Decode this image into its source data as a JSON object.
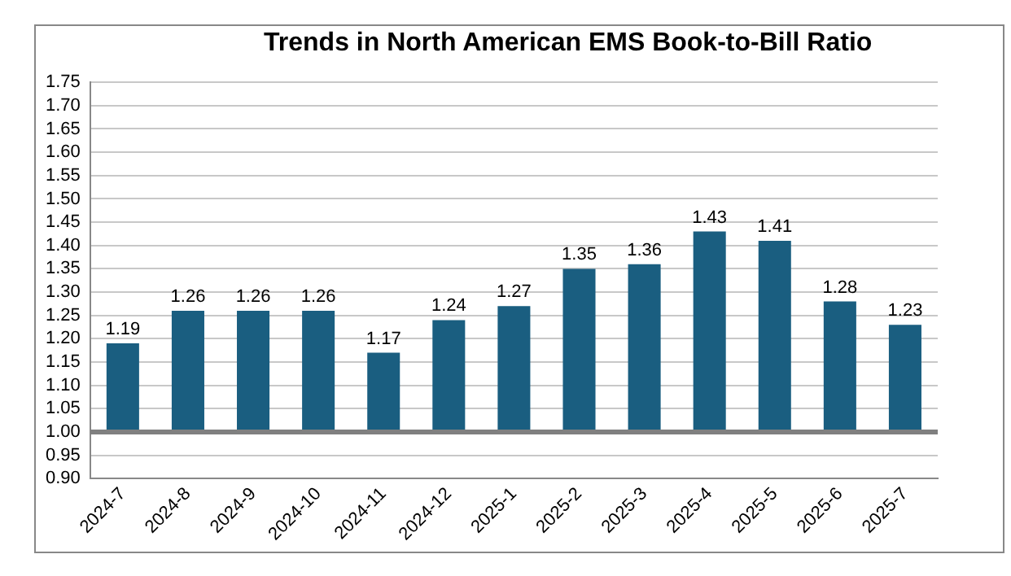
{
  "chart_data": {
    "type": "bar",
    "title": "Trends in North American EMS Book-to-Bill Ratio",
    "categories": [
      "2024-7",
      "2024-8",
      "2024-9",
      "2024-10",
      "2024-11",
      "2024-12",
      "2025-1",
      "2025-2",
      "2025-3",
      "2025-4",
      "2025-5",
      "2025-6",
      "2025-7"
    ],
    "values": [
      0.19,
      0.26,
      0.26,
      0.26,
      0.17,
      0.24,
      0.27,
      0.35,
      0.36,
      0.43,
      0.41,
      0.28,
      0.23
    ],
    "base": [
      1.0,
      1.0,
      1.0,
      1.0,
      1.0,
      1.0,
      1.0,
      1.0,
      1.0,
      1.0,
      1.0,
      1.0,
      1.0
    ],
    "value_labels": [
      "1.19",
      "1.26",
      "1.26",
      "1.26",
      "1.17",
      "1.24",
      "1.27",
      "1.35",
      "1.36",
      "1.43",
      "1.41",
      "1.28",
      "1.23"
    ],
    "color": "#1a5e80",
    "ylim": [
      0.9,
      1.75
    ],
    "yticks": [
      {
        "value": 0.9,
        "label": "0.90"
      },
      {
        "value": 0.95,
        "label": "0.95"
      },
      {
        "value": 1.0,
        "label": "1.00"
      },
      {
        "value": 1.05,
        "label": "1.05"
      },
      {
        "value": 1.1,
        "label": "1.10"
      },
      {
        "value": 1.15,
        "label": "1.15"
      },
      {
        "value": 1.2,
        "label": "1.20"
      },
      {
        "value": 1.25,
        "label": "1.25"
      },
      {
        "value": 1.3,
        "label": "1.30"
      },
      {
        "value": 1.35,
        "label": "1.35"
      },
      {
        "value": 1.4,
        "label": "1.40"
      },
      {
        "value": 1.45,
        "label": "1.45"
      },
      {
        "value": 1.5,
        "label": "1.50"
      },
      {
        "value": 1.55,
        "label": "1.55"
      },
      {
        "value": 1.6,
        "label": "1.60"
      },
      {
        "value": 1.65,
        "label": "1.65"
      },
      {
        "value": 1.7,
        "label": "1.70"
      },
      {
        "value": 1.75,
        "label": "1.75"
      }
    ],
    "ref_lines": [
      {
        "axis": "y",
        "value": 1.0,
        "color": "#808080"
      }
    ],
    "grid": "y"
  }
}
